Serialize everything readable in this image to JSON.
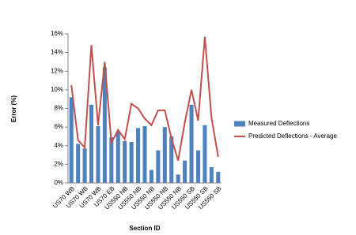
{
  "chart_data": {
    "type": "bar-line",
    "x_label": "Section ID",
    "y_label": "Error (%)",
    "categories": [
      "US70 WB",
      null,
      "US70 WB",
      null,
      "US70 WB",
      null,
      "US70 EB",
      null,
      "US550 NB",
      null,
      "US550 NB",
      null,
      "US550 NB",
      null,
      "US550 NB",
      null,
      "US550 NB",
      null,
      "US550 SB",
      null,
      "US550 SB",
      null,
      "US550 SB"
    ],
    "series": [
      {
        "name": "Measured Deflections",
        "type": "bar",
        "color": "#4f81bd",
        "values": [
          9.2,
          4.2,
          3.7,
          8.4,
          6.1,
          12.4,
          4.9,
          5.5,
          4.5,
          4.4,
          5.9,
          6.1,
          1.4,
          3.5,
          6.0,
          5.0,
          0.9,
          2.4,
          8.4,
          3.5,
          6.2,
          1.7,
          1.2
        ]
      },
      {
        "name": "Predicted Deflections - Average",
        "type": "line",
        "color": "#c0504d",
        "values": [
          10.5,
          4.6,
          3.8,
          14.8,
          6.2,
          13.0,
          4.3,
          5.7,
          4.7,
          8.5,
          8.0,
          6.9,
          6.2,
          7.8,
          7.8,
          4.8,
          2.4,
          6.5,
          10.0,
          6.7,
          15.7,
          7.0,
          2.8
        ]
      }
    ],
    "ylim": [
      0,
      16
    ],
    "yticks": [
      {
        "value": 0,
        "label": "0%"
      },
      {
        "value": 2,
        "label": "2%"
      },
      {
        "value": 4,
        "label": "4%"
      },
      {
        "value": 6,
        "label": "6%"
      },
      {
        "value": 8,
        "label": "8%"
      },
      {
        "value": 10,
        "label": "10%"
      },
      {
        "value": 12,
        "label": "12%"
      },
      {
        "value": 14,
        "label": "14%"
      },
      {
        "value": 16,
        "label": "16%"
      }
    ],
    "legend": "right"
  }
}
